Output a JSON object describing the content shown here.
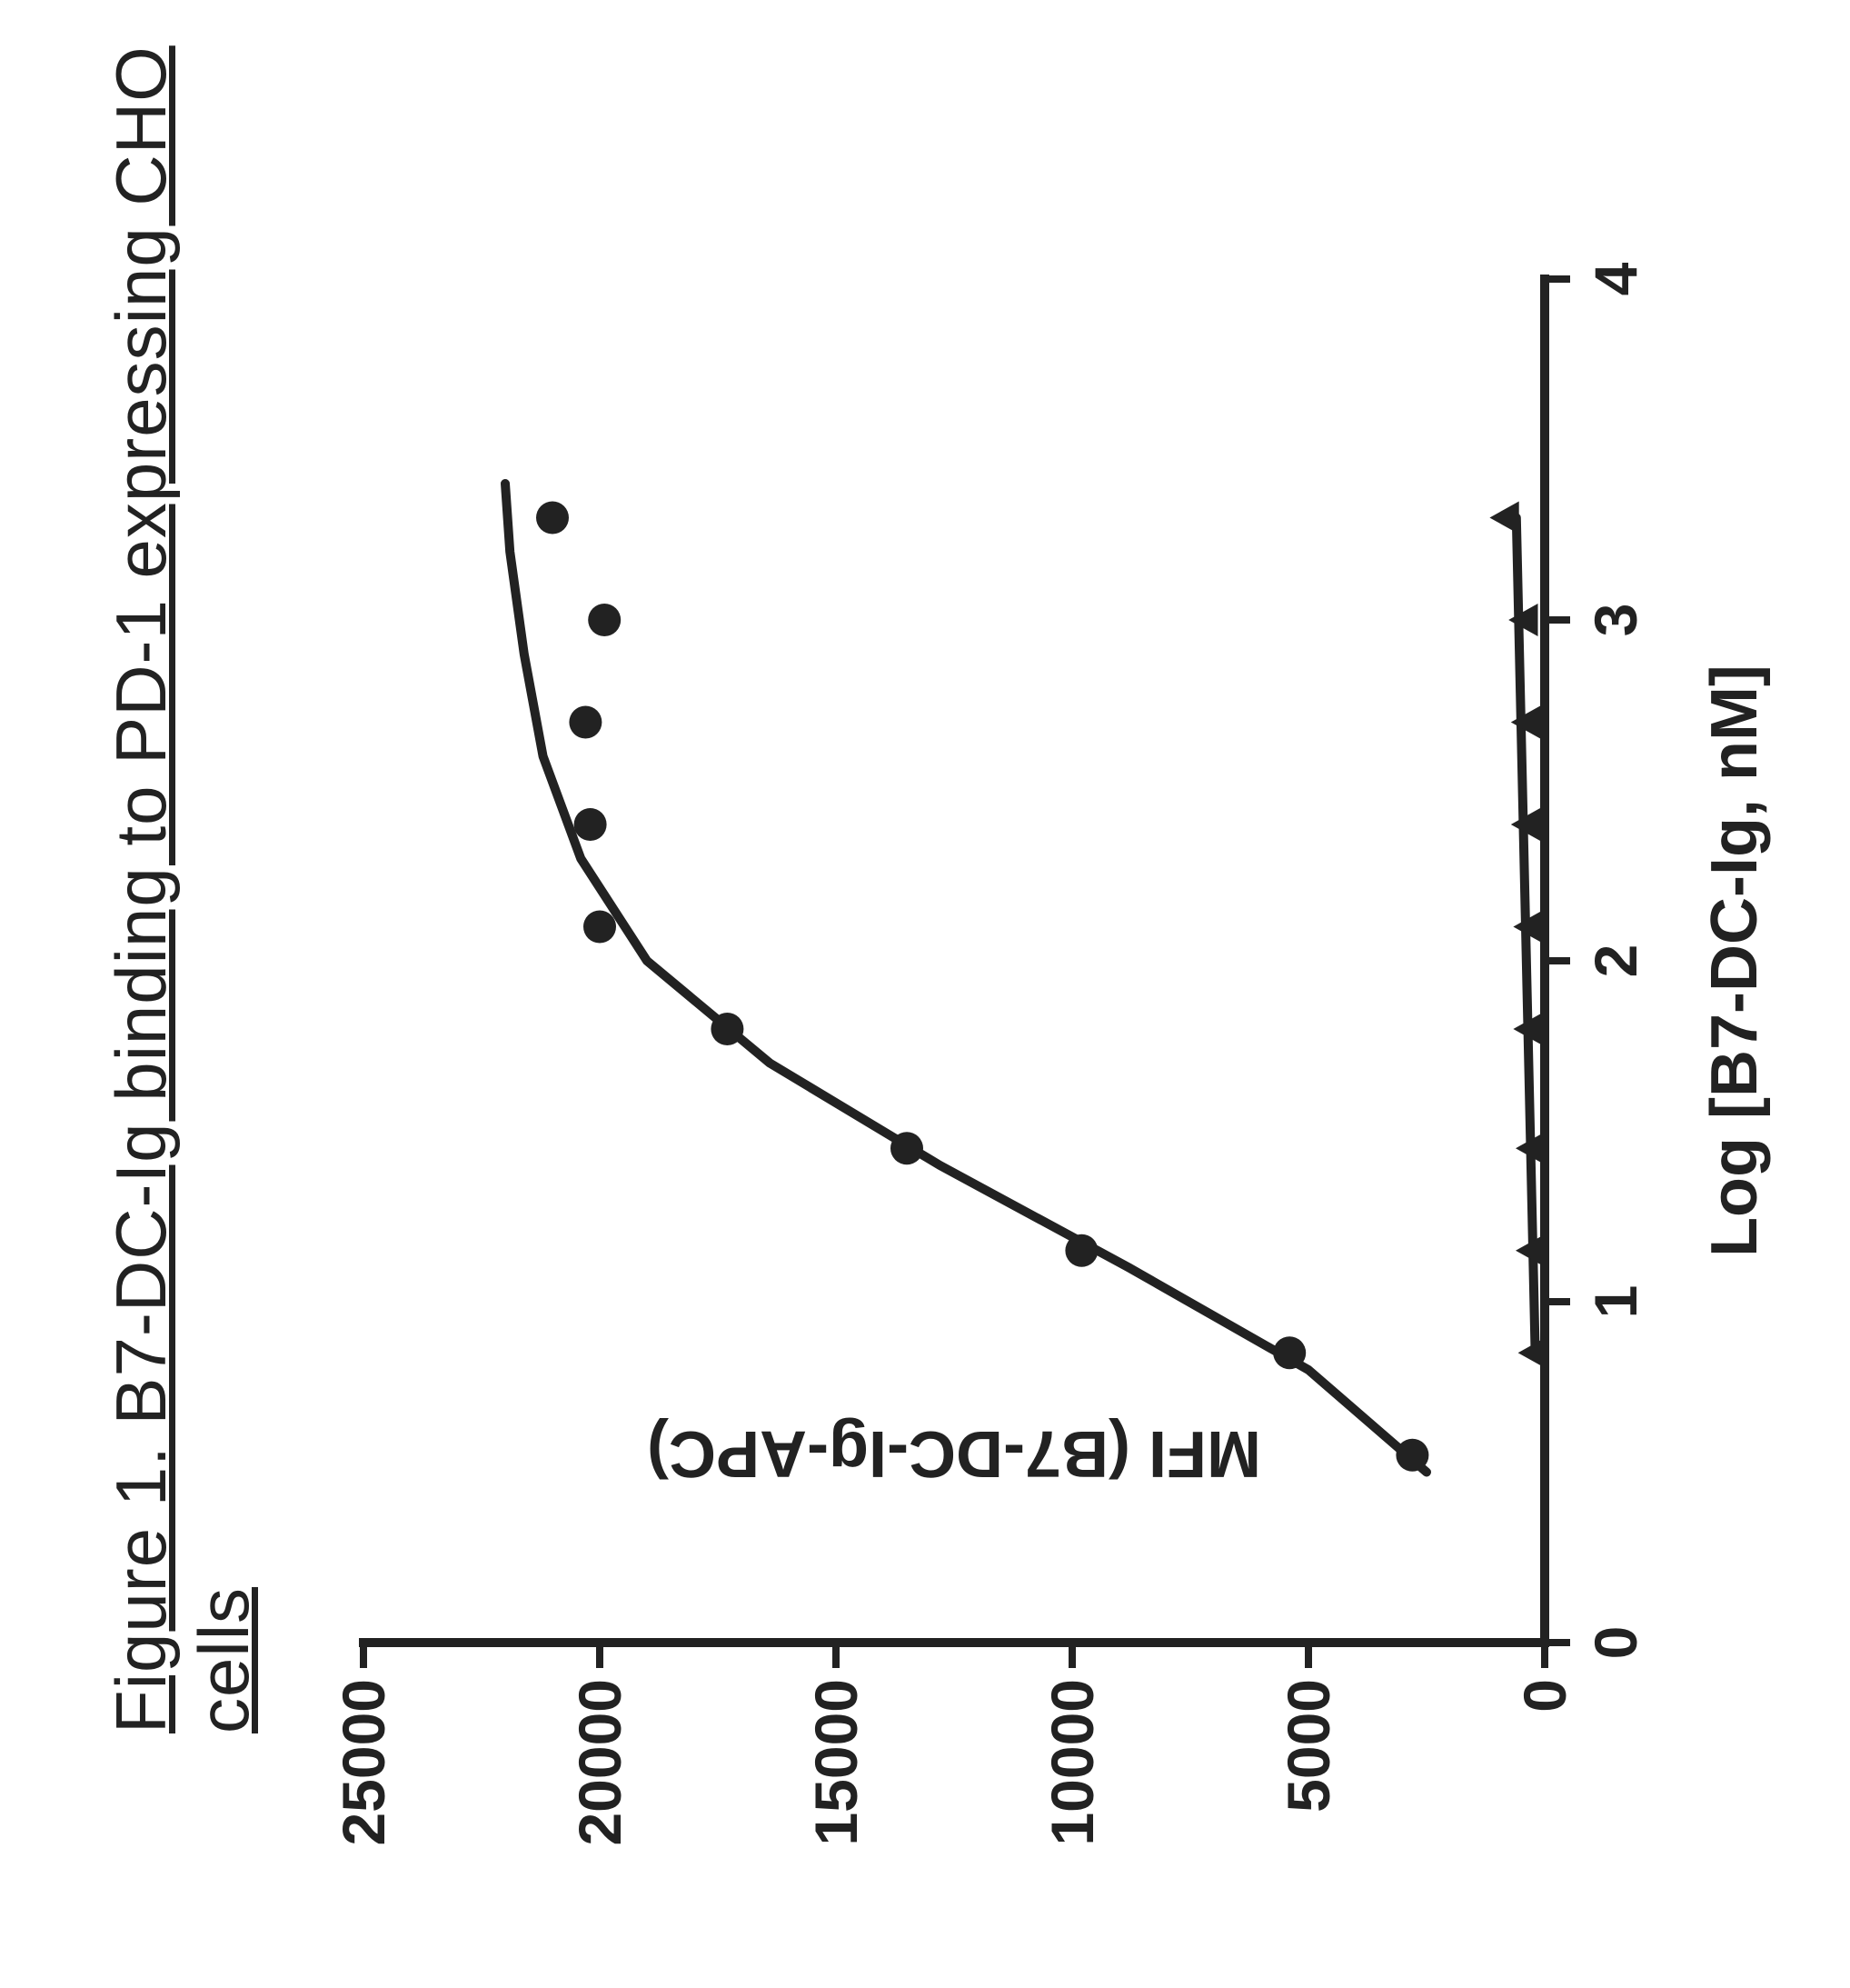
{
  "title": "Figure 1. B7-DC-Ig binding to PD-1 expressing CHO cells",
  "chart": {
    "type": "scatter-line",
    "xlabel": "Log [B7-DC-Ig, nM]",
    "ylabel": "MFI (B7-DC-Ig-APC)",
    "xlim": [
      0,
      4
    ],
    "ylim": [
      0,
      25000
    ],
    "xtick_step": 1,
    "ytick_step": 5000,
    "xticks": [
      0,
      1,
      2,
      3,
      4
    ],
    "yticks": [
      0,
      5000,
      10000,
      15000,
      20000,
      25000
    ],
    "axis_color": "#222222",
    "axis_width": 10,
    "tick_length": 28,
    "tick_width": 8,
    "background_color": "#ffffff",
    "label_fontsize": 72,
    "tick_fontsize": 66,
    "title_fontsize": 78,
    "series": [
      {
        "name": "pd1-cho",
        "marker": "circle",
        "marker_size": 36,
        "marker_color": "#222222",
        "line_color": "#222222",
        "line_width": 10,
        "x": [
          0.55,
          0.85,
          1.15,
          1.45,
          1.8,
          2.1,
          2.4,
          2.7,
          3.0,
          3.3
        ],
        "y": [
          2800,
          5400,
          9800,
          13500,
          17300,
          20000,
          20200,
          20300,
          19900,
          21000
        ],
        "fit_x": [
          0.5,
          0.8,
          1.1,
          1.4,
          1.7,
          2.0,
          2.3,
          2.6,
          2.9,
          3.2,
          3.4
        ],
        "fit_y": [
          2500,
          5000,
          8800,
          12800,
          16400,
          19000,
          20400,
          21200,
          21600,
          21900,
          22000
        ]
      },
      {
        "name": "control",
        "marker": "triangle",
        "marker_size": 38,
        "marker_color": "#222222",
        "line_color": "#222222",
        "line_width": 10,
        "x": [
          0.85,
          1.15,
          1.45,
          1.8,
          2.1,
          2.4,
          2.7,
          3.0,
          3.3
        ],
        "y": [
          200,
          250,
          250,
          300,
          300,
          350,
          350,
          400,
          800
        ],
        "fit_x": [
          0.85,
          3.3
        ],
        "fit_y": [
          200,
          600
        ]
      }
    ]
  }
}
